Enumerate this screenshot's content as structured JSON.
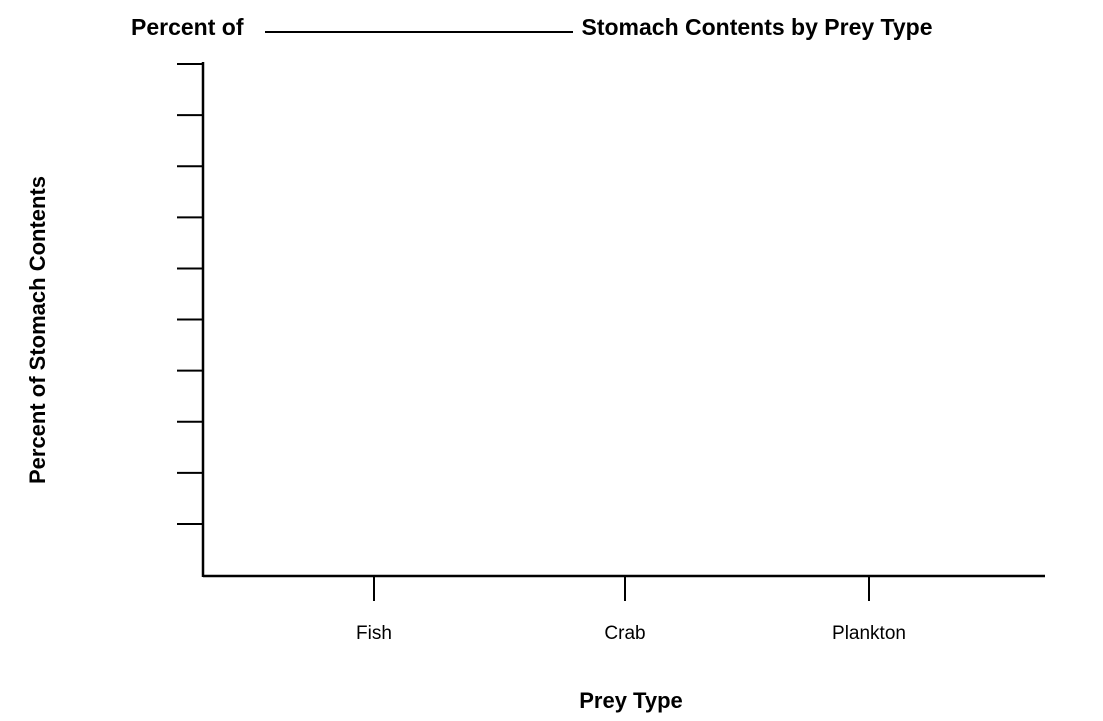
{
  "chart_data": {
    "type": "bar",
    "title_prefix": "Percent of",
    "title_suffix": "Stomach Contents by Prey Type",
    "xlabel": "Prey Type",
    "ylabel": "Percent of Stomach Contents",
    "categories": [
      "Fish",
      "Crab",
      "Plankton"
    ],
    "values": [
      null,
      null,
      null
    ],
    "y_tick_count": 10,
    "grid": false
  }
}
